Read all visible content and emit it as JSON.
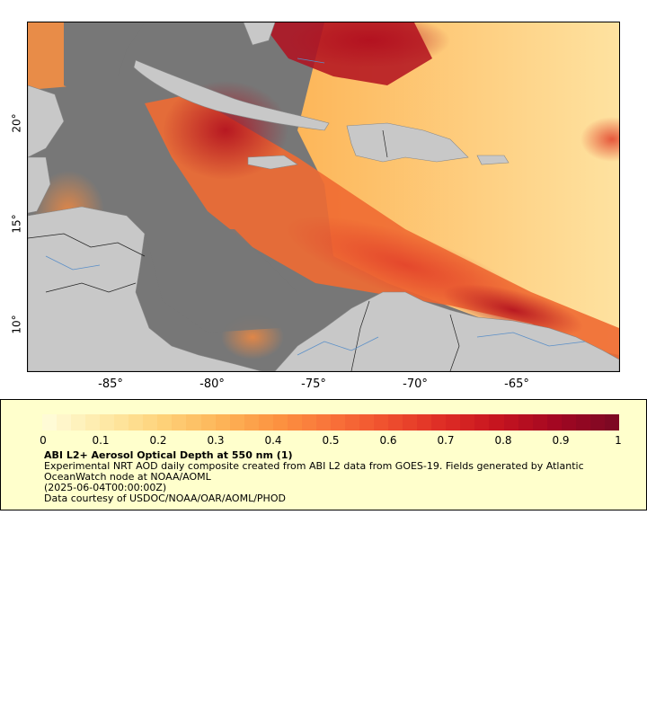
{
  "map": {
    "lon_ticks": [
      "-85°",
      "-80°",
      "-75°",
      "-70°",
      "-65°"
    ],
    "lat_ticks": [
      "20°",
      "15°",
      "10°"
    ],
    "colors": {
      "land": "#c8c8c8",
      "no_data": "#777777",
      "borders": "#222222",
      "rivers": "#5a8fc8"
    }
  },
  "legend": {
    "colorbar_ticks": [
      "0",
      "0.1",
      "0.2",
      "0.3",
      "0.4",
      "0.5",
      "0.6",
      "0.7",
      "0.8",
      "0.9",
      "1"
    ],
    "colorbar_min": 0,
    "colorbar_max": 1,
    "colorbar_colors": [
      "#fffbd6",
      "#fee9a6",
      "#fed27a",
      "#fdb659",
      "#fc9441",
      "#f9733a",
      "#ef4f2e",
      "#de2c25",
      "#c5141f",
      "#a30722",
      "#7e0823"
    ],
    "title": "ABI L2+ Aerosol Optical Depth at 550 nm (1)",
    "description": "Experimental NRT AOD daily composite created from ABI L2 data from GOES-19. Fields generated by Atlantic OceanWatch node at NOAA/AOML",
    "date": "(2025-06-04T00:00:00Z)",
    "credit": "Data courtesy of USDOC/NOAA/OAR/AOML/PHOD"
  }
}
